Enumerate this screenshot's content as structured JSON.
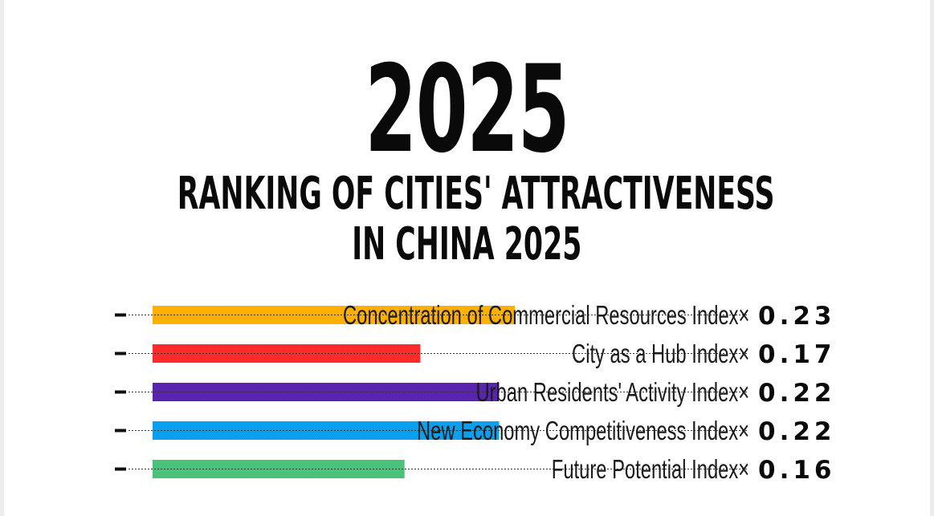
{
  "header": {
    "year": "2025",
    "title_line1": "RANKING OF CITIES' ATTRACTIVENESS",
    "title_line2": "IN CHINA 2025"
  },
  "chart_data": {
    "type": "bar",
    "categories": [
      "Concentration of Commercial Resources Index×",
      "City as a Hub Index×",
      "Urban Residents' Activity Index×",
      "New Economy Competitiveness Index×",
      "Future Potential Index×"
    ],
    "values": [
      0.23,
      0.17,
      0.22,
      0.22,
      0.16
    ],
    "value_labels": [
      "0.23",
      "0.17",
      "0.22",
      "0.22",
      "0.16"
    ],
    "colors": [
      "#ffb000",
      "#ff2a2a",
      "#5a25ad",
      "#0aa0ee",
      "#4ac27a"
    ],
    "xlim": [
      0,
      0.255
    ],
    "grid": false
  }
}
